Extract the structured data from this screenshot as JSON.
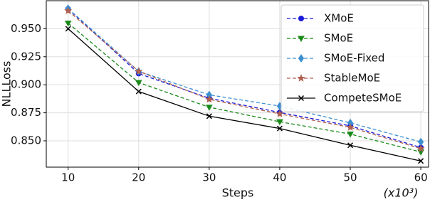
{
  "chart_data": {
    "type": "line",
    "x_label": "Steps",
    "y_label": "NLLLoss",
    "annotation": "(x10³)",
    "x": [
      10,
      20,
      30,
      40,
      50,
      60
    ],
    "series": [
      {
        "name": "XMoE",
        "color": "#1a1ad8",
        "marker": "circle",
        "dashed": true,
        "values": [
          0.9677,
          0.91,
          0.888,
          0.8753,
          0.8633,
          0.844
        ]
      },
      {
        "name": "SMoE",
        "color": "#1a8a1a",
        "marker": "tri_down",
        "dashed": true,
        "values": [
          0.955,
          0.902,
          0.88,
          0.867,
          0.856,
          0.84
        ]
      },
      {
        "name": "SMoE-Fixed",
        "color": "#3b8fd0",
        "marker": "diamond",
        "dashed": true,
        "values": [
          0.968,
          0.912,
          0.891,
          0.881,
          0.866,
          0.849
        ]
      },
      {
        "name": "StableMoE",
        "color": "#b0604f",
        "marker": "star",
        "dashed": true,
        "values": [
          0.966,
          0.912,
          0.887,
          0.874,
          0.862,
          0.843
        ]
      },
      {
        "name": "CompeteSMoE",
        "color": "#000000",
        "marker": "x",
        "dashed": false,
        "values": [
          0.95,
          0.894,
          0.872,
          0.861,
          0.846,
          0.832
        ]
      }
    ],
    "xlim": [
      6.9,
      61.2
    ],
    "ylim": [
      0.8265,
      0.975
    ],
    "xticks": [
      10,
      20,
      30,
      40,
      50,
      60
    ],
    "yticks": [
      {
        "value": 0.85,
        "label": "0.850"
      },
      {
        "value": 0.875,
        "label": "0.875"
      },
      {
        "value": 0.9,
        "label": "0.900"
      },
      {
        "value": 0.925,
        "label": "0.925"
      },
      {
        "value": 0.95,
        "label": "0.950"
      }
    ],
    "grid": true,
    "legend": "upper right"
  }
}
